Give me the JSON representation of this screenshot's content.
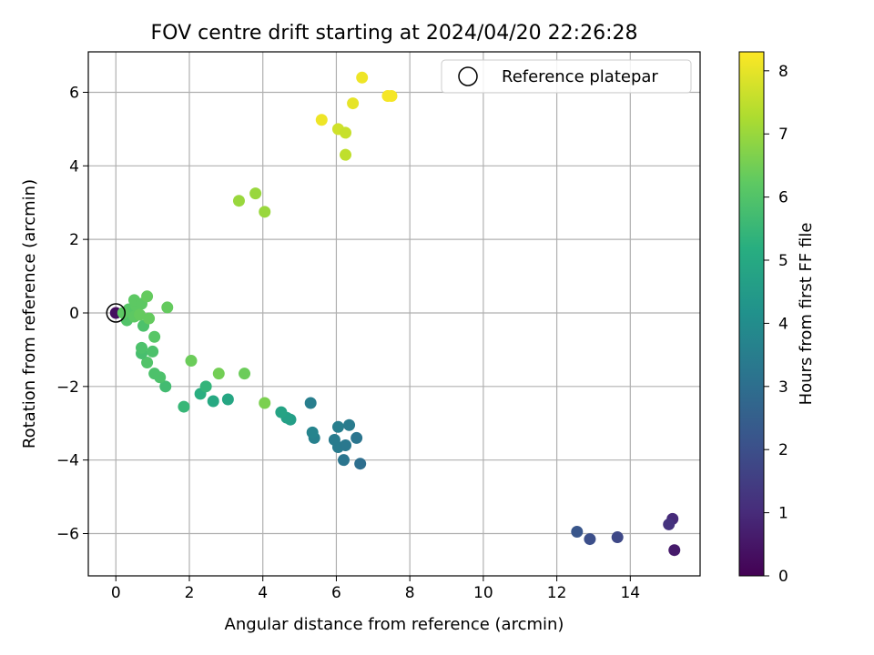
{
  "chart_data": {
    "type": "scatter",
    "title": "FOV centre drift starting at 2024/04/20 22:26:28",
    "xlabel": "Angular distance from reference (arcmin)",
    "ylabel": "Rotation from reference (arcmin)",
    "xlim": [
      -0.75,
      15.9
    ],
    "ylim": [
      -7.15,
      7.1
    ],
    "xticks": [
      0,
      2,
      4,
      6,
      8,
      10,
      12,
      14
    ],
    "yticks": [
      -6,
      -4,
      -2,
      0,
      2,
      4,
      6
    ],
    "grid": true,
    "legend": {
      "position": "top-right",
      "entries": [
        "Reference platepar"
      ]
    },
    "colorbar": {
      "label": "Hours from first FF file",
      "range": [
        0,
        8.3
      ],
      "ticks": [
        0,
        1,
        2,
        3,
        4,
        5,
        6,
        7,
        8
      ],
      "colormap": "viridis"
    },
    "reference_point": {
      "x": 0,
      "y": 0,
      "label": "Reference platepar"
    },
    "points": [
      {
        "x": 0.0,
        "y": 0.0,
        "h": 0.3
      },
      {
        "x": 15.2,
        "y": -6.45,
        "h": 0.6
      },
      {
        "x": 15.15,
        "y": -5.6,
        "h": 1.0
      },
      {
        "x": 15.05,
        "y": -5.75,
        "h": 1.2
      },
      {
        "x": 13.65,
        "y": -6.1,
        "h": 1.8
      },
      {
        "x": 12.9,
        "y": -6.15,
        "h": 2.0
      },
      {
        "x": 12.55,
        "y": -5.95,
        "h": 2.2
      },
      {
        "x": 6.65,
        "y": -4.1,
        "h": 3.0
      },
      {
        "x": 6.2,
        "y": -4.0,
        "h": 3.2
      },
      {
        "x": 6.55,
        "y": -3.4,
        "h": 3.2
      },
      {
        "x": 6.05,
        "y": -3.65,
        "h": 3.4
      },
      {
        "x": 6.25,
        "y": -3.6,
        "h": 3.3
      },
      {
        "x": 5.95,
        "y": -3.45,
        "h": 3.4
      },
      {
        "x": 6.05,
        "y": -3.1,
        "h": 3.5
      },
      {
        "x": 6.35,
        "y": -3.05,
        "h": 3.4
      },
      {
        "x": 5.4,
        "y": -3.4,
        "h": 3.6
      },
      {
        "x": 5.35,
        "y": -3.25,
        "h": 3.7
      },
      {
        "x": 5.3,
        "y": -2.45,
        "h": 3.5
      },
      {
        "x": 4.75,
        "y": -2.9,
        "h": 4.6
      },
      {
        "x": 4.65,
        "y": -2.85,
        "h": 4.7
      },
      {
        "x": 4.5,
        "y": -2.7,
        "h": 4.8
      },
      {
        "x": 3.05,
        "y": -2.35,
        "h": 4.9
      },
      {
        "x": 2.65,
        "y": -2.4,
        "h": 5.0
      },
      {
        "x": 2.3,
        "y": -2.2,
        "h": 5.2
      },
      {
        "x": 1.85,
        "y": -2.55,
        "h": 5.5
      },
      {
        "x": 2.45,
        "y": -2.0,
        "h": 5.4
      },
      {
        "x": 1.35,
        "y": -2.0,
        "h": 5.7
      },
      {
        "x": 1.2,
        "y": -1.75,
        "h": 5.9
      },
      {
        "x": 1.05,
        "y": -1.65,
        "h": 5.9
      },
      {
        "x": 0.85,
        "y": -1.35,
        "h": 6.0
      },
      {
        "x": 0.7,
        "y": -1.1,
        "h": 5.8
      },
      {
        "x": 0.7,
        "y": -0.95,
        "h": 5.9
      },
      {
        "x": 1.0,
        "y": -1.05,
        "h": 5.9
      },
      {
        "x": 1.05,
        "y": -0.65,
        "h": 6.1
      },
      {
        "x": 0.75,
        "y": -0.35,
        "h": 5.9
      },
      {
        "x": 0.3,
        "y": -0.2,
        "h": 6.0
      },
      {
        "x": 0.35,
        "y": 0.1,
        "h": 6.1
      },
      {
        "x": 0.5,
        "y": -0.1,
        "h": 6.2
      },
      {
        "x": 0.55,
        "y": 0.2,
        "h": 6.2
      },
      {
        "x": 0.5,
        "y": 0.35,
        "h": 6.2
      },
      {
        "x": 0.7,
        "y": 0.25,
        "h": 6.2
      },
      {
        "x": 0.85,
        "y": 0.45,
        "h": 6.3
      },
      {
        "x": 0.9,
        "y": -0.15,
        "h": 6.3
      },
      {
        "x": 0.65,
        "y": -0.05,
        "h": 6.3
      },
      {
        "x": 0.2,
        "y": 0.0,
        "h": 6.2
      },
      {
        "x": 1.4,
        "y": 0.15,
        "h": 6.3
      },
      {
        "x": 2.05,
        "y": -1.3,
        "h": 6.4
      },
      {
        "x": 2.8,
        "y": -1.65,
        "h": 6.5
      },
      {
        "x": 3.5,
        "y": -1.65,
        "h": 6.4
      },
      {
        "x": 4.05,
        "y": -2.45,
        "h": 6.6
      },
      {
        "x": 3.35,
        "y": 3.05,
        "h": 7.0
      },
      {
        "x": 3.8,
        "y": 3.25,
        "h": 7.0
      },
      {
        "x": 4.05,
        "y": 2.75,
        "h": 7.0
      },
      {
        "x": 6.25,
        "y": 4.3,
        "h": 7.5
      },
      {
        "x": 6.05,
        "y": 5.0,
        "h": 7.7
      },
      {
        "x": 6.25,
        "y": 4.9,
        "h": 7.6
      },
      {
        "x": 5.6,
        "y": 5.25,
        "h": 8.1
      },
      {
        "x": 6.45,
        "y": 5.7,
        "h": 8.0
      },
      {
        "x": 6.7,
        "y": 6.4,
        "h": 8.1
      },
      {
        "x": 7.4,
        "y": 5.9,
        "h": 8.2
      },
      {
        "x": 7.5,
        "y": 5.9,
        "h": 8.2
      }
    ]
  }
}
